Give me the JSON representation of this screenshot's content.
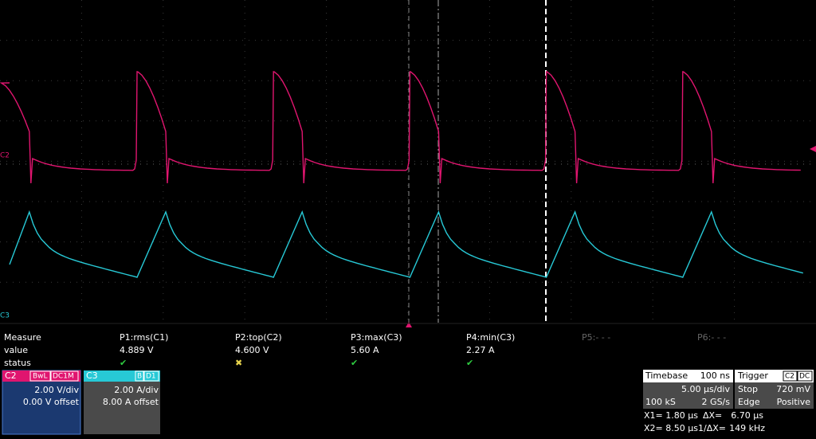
{
  "screen": {
    "markers": {
      "c2": "C2",
      "c3": "C3"
    },
    "measure": {
      "headers": [
        "Measure",
        "P1:rms(C1)",
        "P2:top(C2)",
        "P3:max(C3)",
        "P4:min(C3)",
        "P5:- - -",
        "P6:- - -"
      ],
      "value_row": [
        "value",
        "4.889 V",
        "4.600 V",
        "5.60 A",
        "2.27 A"
      ],
      "status_label": "status"
    },
    "channels": [
      {
        "name": "C2",
        "tags": [
          "BwL",
          "DC1M"
        ],
        "scale": "2.00 V/div",
        "offset": "0.00 V offset"
      },
      {
        "name": "C3",
        "tags": [
          "B",
          "D1"
        ],
        "scale": "2.00 A/div",
        "offset": "8.00 A offset"
      }
    ],
    "timebase": {
      "title": "Timebase",
      "delay": "100 ns",
      "per_div": "5.00 µs/div",
      "samples": "100 kS",
      "rate": "2 GS/s"
    },
    "trigger": {
      "title": "Trigger",
      "source": "C2",
      "coupling": "DC",
      "mode": "Stop",
      "level": "720 mV",
      "type": "Edge",
      "slope": "Positive"
    },
    "cursors": {
      "x1": "X1= 1.80 µs",
      "dx": "ΔX=",
      "dx_value": "6.70 µs",
      "x2": "X2= 8.50 µs",
      "inv": "1/ΔX=",
      "inv_value": "149 kHz"
    }
  }
}
